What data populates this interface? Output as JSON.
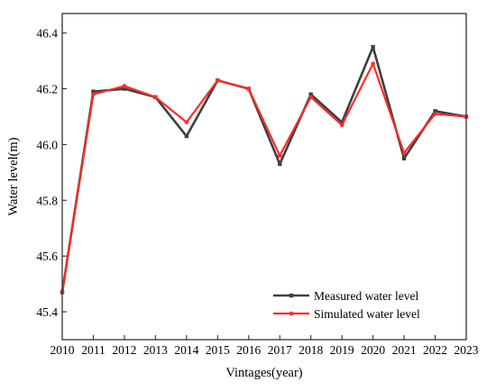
{
  "chart_data": {
    "type": "line",
    "xlabel": "Vintages(year)",
    "ylabel": "Water level(m)",
    "x": [
      2010,
      2011,
      2012,
      2013,
      2014,
      2015,
      2016,
      2017,
      2018,
      2019,
      2020,
      2021,
      2022,
      2023
    ],
    "xlim": [
      2010,
      2023
    ],
    "ylim": [
      45.3,
      46.47
    ],
    "yticks": [
      "45.4",
      "45.6",
      "45.8",
      "46.0",
      "46.2",
      "46.4"
    ],
    "grid": false,
    "legend_position": "bottom-right",
    "series": [
      {
        "name": "Measured water level",
        "color": "#3f3f3f",
        "marker": "square",
        "values": [
          45.47,
          46.19,
          46.2,
          46.17,
          46.03,
          46.23,
          46.2,
          45.93,
          46.18,
          46.08,
          46.35,
          45.95,
          46.12,
          46.1
        ]
      },
      {
        "name": "Simulated water level",
        "color": "#ff2a2a",
        "marker": "circle",
        "values": [
          45.47,
          46.18,
          46.21,
          46.17,
          46.08,
          46.23,
          46.2,
          45.96,
          46.17,
          46.07,
          46.29,
          45.97,
          46.11,
          46.1
        ]
      }
    ]
  }
}
